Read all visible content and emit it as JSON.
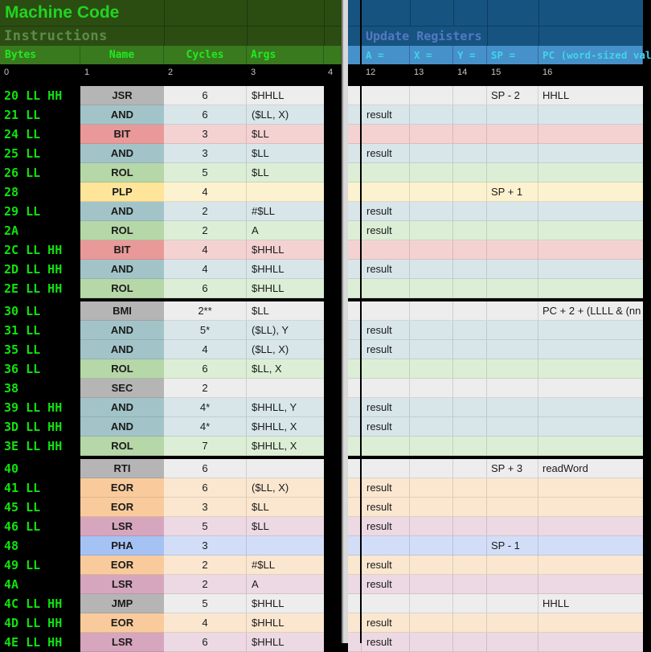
{
  "left_pane": {
    "title": "Machine Code",
    "subtitle": "Instructions",
    "columns": [
      "Bytes",
      "Name",
      "Cycles",
      "Args"
    ],
    "column_numbers": [
      "0",
      "1",
      "2",
      "3",
      "4"
    ]
  },
  "right_pane": {
    "title": "Update Registers",
    "columns": [
      "A =",
      "X =",
      "Y =",
      "SP =",
      "PC (word-sized val"
    ],
    "column_numbers": [
      "12",
      "13",
      "14",
      "15",
      "16"
    ]
  },
  "colors": {
    "background": "#000000",
    "left_band_bg": "#2b4d12",
    "left_title_green": "#21d421",
    "left_subtitle_green": "#5e8b4b",
    "left_header_bg": "#3a7a1e",
    "left_header_text": "#20ea20",
    "bytes_text_green": "#10e210",
    "column_number_text": "#c6c6c6",
    "right_band_bg": "#165380",
    "right_title_blue": "#5579c1",
    "right_header_bg": "#4691c9",
    "right_header_text": "#40d4ea",
    "divider_gray": "#d9d9d9",
    "palette": {
      "gray": {
        "strong": "#b5b5b5",
        "light": "#ededed"
      },
      "cyan": {
        "strong": "#a2c4c9",
        "light": "#d8e6ea"
      },
      "red": {
        "strong": "#ea9999",
        "light": "#f5d2d2"
      },
      "green": {
        "strong": "#b6d7a8",
        "light": "#dcefd6"
      },
      "yellow": {
        "strong": "#ffe599",
        "light": "#fdf2cf"
      },
      "orange": {
        "strong": "#f9cb9c",
        "light": "#fbe7d0"
      },
      "magenta": {
        "strong": "#d5a6bd",
        "light": "#ecd9e3"
      },
      "blue": {
        "strong": "#a4c2f4",
        "light": "#d2def7"
      }
    }
  },
  "rows": [
    {
      "bytes": "20 LL HH",
      "name": "JSR",
      "cycles": "6",
      "args": "$HHLL",
      "color": "gray",
      "a": "",
      "x": "",
      "y": "",
      "sp": "SP - 2",
      "pc": "HHLL",
      "group": false
    },
    {
      "bytes": "21 LL",
      "name": "AND",
      "cycles": "6",
      "args": "($LL, X)",
      "color": "cyan",
      "a": "result",
      "x": "",
      "y": "",
      "sp": "",
      "pc": "",
      "group": false
    },
    {
      "bytes": "24 LL",
      "name": "BIT",
      "cycles": "3",
      "args": "$LL",
      "color": "red",
      "a": "",
      "x": "",
      "y": "",
      "sp": "",
      "pc": "",
      "group": false
    },
    {
      "bytes": "25 LL",
      "name": "AND",
      "cycles": "3",
      "args": "$LL",
      "color": "cyan",
      "a": "result",
      "x": "",
      "y": "",
      "sp": "",
      "pc": "",
      "group": false
    },
    {
      "bytes": "26 LL",
      "name": "ROL",
      "cycles": "5",
      "args": "$LL",
      "color": "green",
      "a": "",
      "x": "",
      "y": "",
      "sp": "",
      "pc": "",
      "group": false
    },
    {
      "bytes": "28",
      "name": "PLP",
      "cycles": "4",
      "args": "",
      "color": "yellow",
      "a": "",
      "x": "",
      "y": "",
      "sp": "SP + 1",
      "pc": "",
      "group": false
    },
    {
      "bytes": "29 LL",
      "name": "AND",
      "cycles": "2",
      "args": "#$LL",
      "color": "cyan",
      "a": "result",
      "x": "",
      "y": "",
      "sp": "",
      "pc": "",
      "group": false
    },
    {
      "bytes": "2A",
      "name": "ROL",
      "cycles": "2",
      "args": "A",
      "color": "green",
      "a": "result",
      "x": "",
      "y": "",
      "sp": "",
      "pc": "",
      "group": false
    },
    {
      "bytes": "2C LL HH",
      "name": "BIT",
      "cycles": "4",
      "args": "$HHLL",
      "color": "red",
      "a": "",
      "x": "",
      "y": "",
      "sp": "",
      "pc": "",
      "group": false
    },
    {
      "bytes": "2D LL HH",
      "name": "AND",
      "cycles": "4",
      "args": "$HHLL",
      "color": "cyan",
      "a": "result",
      "x": "",
      "y": "",
      "sp": "",
      "pc": "",
      "group": false
    },
    {
      "bytes": "2E LL HH",
      "name": "ROL",
      "cycles": "6",
      "args": "$HHLL",
      "color": "green",
      "a": "",
      "x": "",
      "y": "",
      "sp": "",
      "pc": "",
      "group": false
    },
    {
      "bytes": "30 LL",
      "name": "BMI",
      "cycles": "2**",
      "args": "$LL",
      "color": "gray",
      "a": "",
      "x": "",
      "y": "",
      "sp": "",
      "pc": "PC + 2 + (LLLL & (nn",
      "group": true
    },
    {
      "bytes": "31 LL",
      "name": "AND",
      "cycles": "5*",
      "args": "($LL), Y",
      "color": "cyan",
      "a": "result",
      "x": "",
      "y": "",
      "sp": "",
      "pc": "",
      "group": false
    },
    {
      "bytes": "35 LL",
      "name": "AND",
      "cycles": "4",
      "args": "($LL, X)",
      "color": "cyan",
      "a": "result",
      "x": "",
      "y": "",
      "sp": "",
      "pc": "",
      "group": false
    },
    {
      "bytes": "36 LL",
      "name": "ROL",
      "cycles": "6",
      "args": "$LL, X",
      "color": "green",
      "a": "",
      "x": "",
      "y": "",
      "sp": "",
      "pc": "",
      "group": false
    },
    {
      "bytes": "38",
      "name": "SEC",
      "cycles": "2",
      "args": "",
      "color": "gray",
      "a": "",
      "x": "",
      "y": "",
      "sp": "",
      "pc": "",
      "group": false
    },
    {
      "bytes": "39 LL HH",
      "name": "AND",
      "cycles": "4*",
      "args": "$HHLL, Y",
      "color": "cyan",
      "a": "result",
      "x": "",
      "y": "",
      "sp": "",
      "pc": "",
      "group": false
    },
    {
      "bytes": "3D LL HH",
      "name": "AND",
      "cycles": "4*",
      "args": "$HHLL, X",
      "color": "cyan",
      "a": "result",
      "x": "",
      "y": "",
      "sp": "",
      "pc": "",
      "group": false
    },
    {
      "bytes": "3E LL HH",
      "name": "ROL",
      "cycles": "7",
      "args": "$HHLL, X",
      "color": "green",
      "a": "",
      "x": "",
      "y": "",
      "sp": "",
      "pc": "",
      "group": false
    },
    {
      "bytes": "40",
      "name": "RTI",
      "cycles": "6",
      "args": "",
      "color": "gray",
      "a": "",
      "x": "",
      "y": "",
      "sp": "SP + 3",
      "pc": "readWord",
      "group": true
    },
    {
      "bytes": "41 LL",
      "name": "EOR",
      "cycles": "6",
      "args": "($LL, X)",
      "color": "orange",
      "a": "result",
      "x": "",
      "y": "",
      "sp": "",
      "pc": "",
      "group": false
    },
    {
      "bytes": "45 LL",
      "name": "EOR",
      "cycles": "3",
      "args": "$LL",
      "color": "orange",
      "a": "result",
      "x": "",
      "y": "",
      "sp": "",
      "pc": "",
      "group": false
    },
    {
      "bytes": "46 LL",
      "name": "LSR",
      "cycles": "5",
      "args": "$LL",
      "color": "magenta",
      "a": "result",
      "x": "",
      "y": "",
      "sp": "",
      "pc": "",
      "group": false
    },
    {
      "bytes": "48",
      "name": "PHA",
      "cycles": "3",
      "args": "",
      "color": "blue",
      "a": "",
      "x": "",
      "y": "",
      "sp": "SP - 1",
      "pc": "",
      "group": false
    },
    {
      "bytes": "49 LL",
      "name": "EOR",
      "cycles": "2",
      "args": "#$LL",
      "color": "orange",
      "a": "result",
      "x": "",
      "y": "",
      "sp": "",
      "pc": "",
      "group": false
    },
    {
      "bytes": "4A",
      "name": "LSR",
      "cycles": "2",
      "args": "A",
      "color": "magenta",
      "a": "result",
      "x": "",
      "y": "",
      "sp": "",
      "pc": "",
      "group": false
    },
    {
      "bytes": "4C LL HH",
      "name": "JMP",
      "cycles": "5",
      "args": "$HHLL",
      "color": "gray",
      "a": "",
      "x": "",
      "y": "",
      "sp": "",
      "pc": "HHLL",
      "group": false
    },
    {
      "bytes": "4D LL HH",
      "name": "EOR",
      "cycles": "4",
      "args": "$HHLL",
      "color": "orange",
      "a": "result",
      "x": "",
      "y": "",
      "sp": "",
      "pc": "",
      "group": false
    },
    {
      "bytes": "4E LL HH",
      "name": "LSR",
      "cycles": "6",
      "args": "$HHLL",
      "color": "magenta",
      "a": "result",
      "x": "",
      "y": "",
      "sp": "",
      "pc": "",
      "group": false
    }
  ]
}
